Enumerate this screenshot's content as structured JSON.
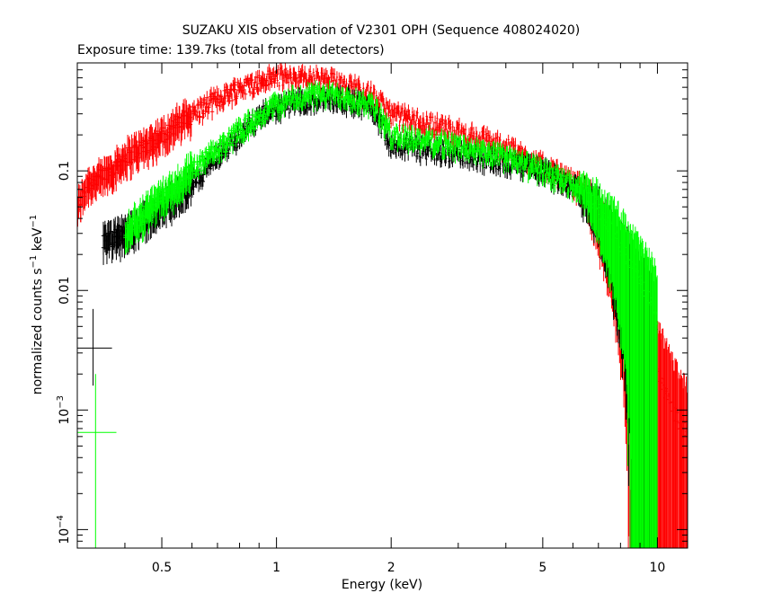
{
  "chart_data": {
    "type": "scatter",
    "title": "SUZAKU XIS observation of V2301 OPH (Sequence 408024020)",
    "subtitle": "Exposure time: 139.7ks (total from all detectors)",
    "xlabel": "Energy (keV)",
    "ylabel": {
      "base": "normalized counts s",
      "sup1": "−1",
      "mid": " keV",
      "sup2": "−1"
    },
    "x_scale": "log",
    "y_scale": "log",
    "xlim": [
      0.3,
      12
    ],
    "ylim": [
      7e-05,
      0.8
    ],
    "x_ticks": [
      {
        "value": 0.5,
        "label": "0.5"
      },
      {
        "value": 1,
        "label": "1"
      },
      {
        "value": 2,
        "label": "2"
      },
      {
        "value": 5,
        "label": "5"
      },
      {
        "value": 10,
        "label": "10"
      }
    ],
    "y_ticks": [
      {
        "value": 0.1,
        "label": "0.1",
        "base": "",
        "exp": ""
      },
      {
        "value": 0.01,
        "label": "0.01",
        "base": "",
        "exp": ""
      },
      {
        "value": 0.001,
        "label": "",
        "base": "10",
        "exp": "−3"
      },
      {
        "value": 0.0001,
        "label": "",
        "base": "10",
        "exp": "−4"
      }
    ],
    "grid": false,
    "series": [
      {
        "color": "#ff0000",
        "style": "crosses",
        "profile": [
          [
            0.3,
            0.05
          ],
          [
            0.32,
            0.08
          ],
          [
            0.35,
            0.09
          ],
          [
            0.4,
            0.13
          ],
          [
            0.5,
            0.2
          ],
          [
            0.6,
            0.3
          ],
          [
            0.7,
            0.4
          ],
          [
            0.8,
            0.5
          ],
          [
            0.9,
            0.55
          ],
          [
            1.0,
            0.62
          ],
          [
            1.2,
            0.6
          ],
          [
            1.5,
            0.55
          ],
          [
            1.8,
            0.42
          ],
          [
            2.0,
            0.3
          ],
          [
            2.5,
            0.25
          ],
          [
            3.0,
            0.21
          ],
          [
            4.0,
            0.16
          ],
          [
            5.0,
            0.11
          ],
          [
            6.0,
            0.08
          ],
          [
            6.5,
            0.065
          ],
          [
            7.0,
            0.04
          ],
          [
            8.0,
            0.014
          ],
          [
            9.0,
            0.005
          ],
          [
            10.0,
            0.002
          ],
          [
            11.0,
            0.001
          ],
          [
            12.0,
            0.0006
          ]
        ]
      },
      {
        "color": "#000000",
        "style": "crosses",
        "profile": [
          [
            0.35,
            0.025
          ],
          [
            0.4,
            0.03
          ],
          [
            0.5,
            0.05
          ],
          [
            0.6,
            0.08
          ],
          [
            0.7,
            0.13
          ],
          [
            0.8,
            0.2
          ],
          [
            0.9,
            0.28
          ],
          [
            1.0,
            0.34
          ],
          [
            1.2,
            0.4
          ],
          [
            1.5,
            0.4
          ],
          [
            1.8,
            0.33
          ],
          [
            2.0,
            0.17
          ],
          [
            2.5,
            0.15
          ],
          [
            3.0,
            0.14
          ],
          [
            4.0,
            0.12
          ],
          [
            5.0,
            0.1
          ],
          [
            6.0,
            0.075
          ],
          [
            6.5,
            0.06
          ],
          [
            7.0,
            0.045
          ],
          [
            8.0,
            0.02
          ],
          [
            9.0,
            0.009
          ],
          [
            10.0,
            0.004
          ]
        ],
        "outliers": [
          {
            "x": 0.33,
            "y": 0.0033,
            "xerr": [
              0.3,
              0.37
            ],
            "yerr": [
              0.0016,
              0.007
            ]
          }
        ]
      },
      {
        "color": "#00ff00",
        "style": "crosses",
        "profile": [
          [
            0.4,
            0.03
          ],
          [
            0.45,
            0.045
          ],
          [
            0.5,
            0.06
          ],
          [
            0.6,
            0.1
          ],
          [
            0.7,
            0.15
          ],
          [
            0.8,
            0.22
          ],
          [
            0.9,
            0.29
          ],
          [
            1.0,
            0.36
          ],
          [
            1.2,
            0.43
          ],
          [
            1.5,
            0.43
          ],
          [
            1.8,
            0.35
          ],
          [
            2.0,
            0.2
          ],
          [
            2.5,
            0.18
          ],
          [
            3.0,
            0.16
          ],
          [
            4.0,
            0.13
          ],
          [
            5.0,
            0.1
          ],
          [
            6.0,
            0.075
          ],
          [
            6.5,
            0.065
          ],
          [
            7.0,
            0.05
          ],
          [
            8.0,
            0.025
          ],
          [
            9.0,
            0.012
          ],
          [
            10.0,
            0.006
          ]
        ],
        "outliers": [
          {
            "x": 0.335,
            "y": 0.00065,
            "xerr": [
              0.3,
              0.38
            ],
            "yerr": [
              7e-05,
              0.002
            ]
          }
        ]
      }
    ]
  }
}
